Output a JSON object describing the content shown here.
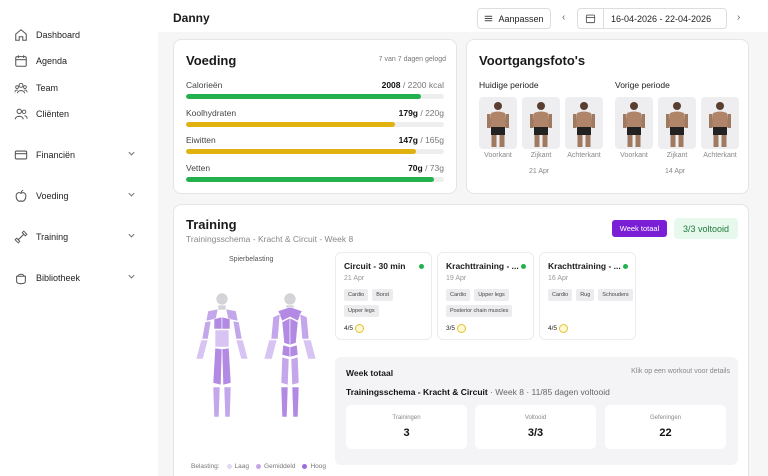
{
  "sidebar": {
    "items": [
      {
        "label": "Dashboard",
        "icon": "home-icon"
      },
      {
        "label": "Agenda",
        "icon": "calendar-icon"
      },
      {
        "label": "Team",
        "icon": "team-icon"
      },
      {
        "label": "Cliënten",
        "icon": "users-icon"
      },
      {
        "label": "Financiën",
        "icon": "card-icon"
      },
      {
        "label": "Voeding",
        "icon": "apple-icon"
      },
      {
        "label": "Training",
        "icon": "dumbbell-icon"
      },
      {
        "label": "Bibliotheek",
        "icon": "library-icon"
      }
    ]
  },
  "header": {
    "user_name": "Danny",
    "customize_label": "Aanpassen",
    "date_range": "16-04-2026 - 22-04-2026"
  },
  "nutrition": {
    "title": "Voeding",
    "days_logged": "7 van 7 dagen gelogd",
    "rows": [
      {
        "label": "Calorieën",
        "value": "2008",
        "target": " / 2200 kcal",
        "progress": 0.91,
        "color": "#22b14c"
      },
      {
        "label": "Koolhydraten",
        "value": "179g",
        "target": " / 220g",
        "progress": 0.81,
        "color": "#e0b10f"
      },
      {
        "label": "Eiwitten",
        "value": "147g",
        "target": " / 165g",
        "progress": 0.89,
        "color": "#e0b10f"
      },
      {
        "label": "Vetten",
        "value": "70g",
        "target": " / 73g",
        "progress": 0.96,
        "color": "#22b14c"
      }
    ]
  },
  "photos": {
    "title": "Voortgangsfoto's",
    "current_label": "Huidige periode",
    "previous_label": "Vorige periode",
    "captions": [
      "Voorkant",
      "Zijkant",
      "Achterkant"
    ],
    "current_date": "21 Apr",
    "previous_date": "14 Apr"
  },
  "training": {
    "title": "Training",
    "subtitle": "Trainingsschema - Kracht & Circuit - Week 8",
    "week_total_button": "Week totaal",
    "completed_badge": "3/3 voltooid",
    "muscle_label": "Spierbelasting",
    "legend": {
      "title": "Belasting:",
      "low": "Laag",
      "mid": "Gemiddeld",
      "high": "Hoog"
    },
    "workouts": [
      {
        "title": "Circuit - 30 min",
        "date": "21 Apr",
        "tags": [
          "Cardio",
          "Borst",
          "Upper legs"
        ],
        "score": "4/5"
      },
      {
        "title": "Krachttraining - ...",
        "date": "19 Apr",
        "tags": [
          "Cardio",
          "Upper legs",
          "Posterior chain muscles"
        ],
        "score": "3/5"
      },
      {
        "title": "Krachttraining - ...",
        "date": "16 Apr",
        "tags": [
          "Cardio",
          "Rug",
          "Schouders"
        ],
        "score": "4/5"
      }
    ],
    "week_panel": {
      "title": "Week totaal",
      "hint": "Klik op een workout voor details",
      "schema": "Trainingsschema - Kracht & Circuit",
      "week": "Week 8",
      "days": "11/85 dagen voltooid",
      "stats": [
        {
          "label": "Trainingen",
          "value": "3"
        },
        {
          "label": "Voltooid",
          "value": "3/3"
        },
        {
          "label": "Gefeningen",
          "value": "22"
        }
      ]
    }
  }
}
